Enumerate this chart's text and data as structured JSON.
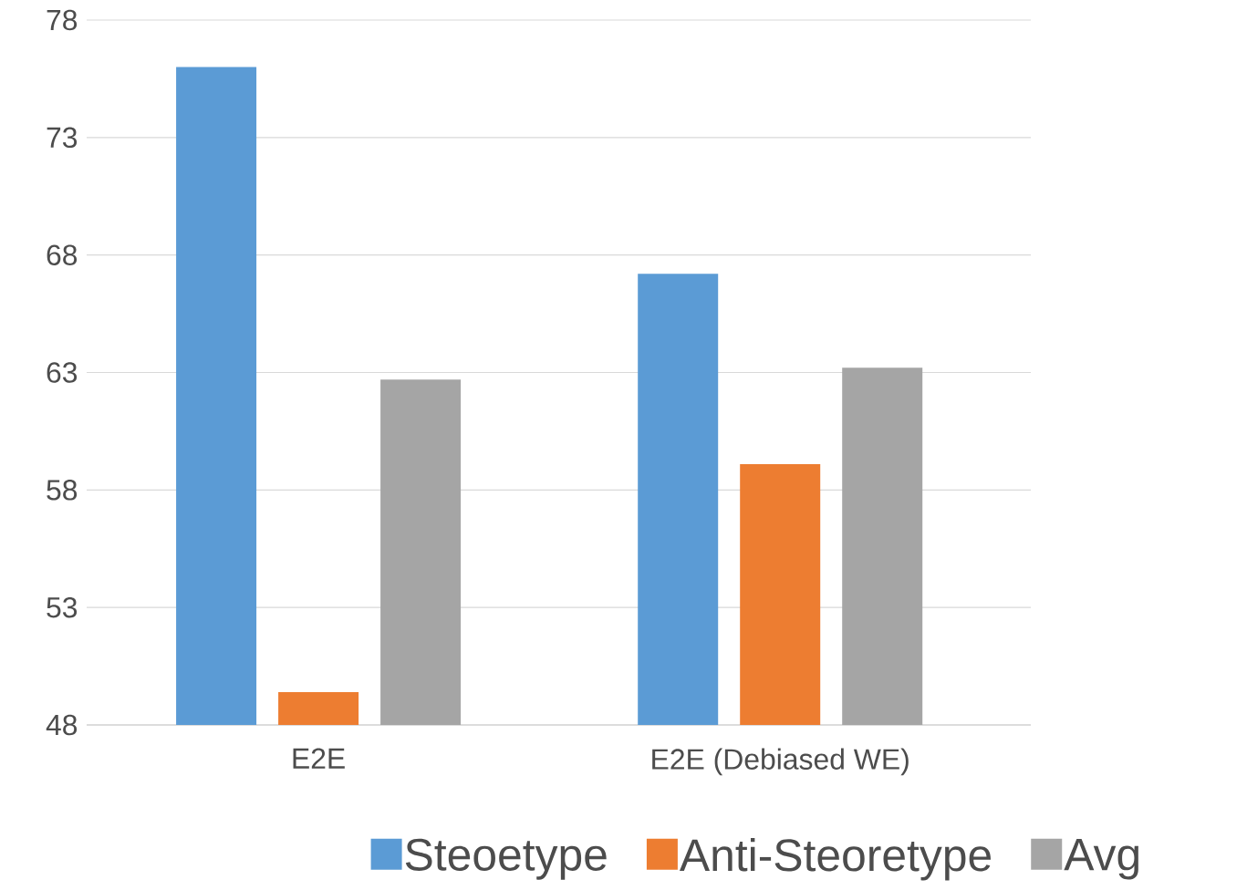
{
  "chart_data": {
    "type": "bar",
    "categories": [
      "E2E",
      "E2E (Debiased WE)"
    ],
    "series": [
      {
        "name": "Steoetype",
        "color": "#5b9bd5",
        "values": [
          76.0,
          67.2
        ]
      },
      {
        "name": "Anti-Steoretype",
        "color": "#ed7d31",
        "values": [
          49.4,
          59.1
        ]
      },
      {
        "name": "Avg",
        "color": "#a5a5a5",
        "values": [
          62.7,
          63.2
        ]
      }
    ],
    "ylim": [
      48,
      78
    ],
    "yticks": [
      48,
      53,
      58,
      63,
      68,
      73,
      78
    ],
    "grid": "y",
    "legend": "bottom"
  }
}
